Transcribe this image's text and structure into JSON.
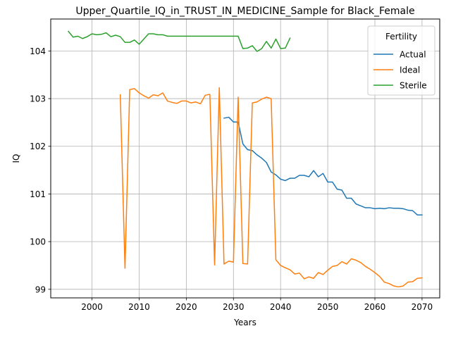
{
  "chart_data": {
    "type": "line",
    "title": "Upper_Quartile_IQ_in_TRUST_IN_MEDICINE_Sample for Black_Female",
    "xlabel": "Years",
    "ylabel": "IQ",
    "xlim": [
      1991.25,
      2073.75
    ],
    "ylim": [
      98.82,
      104.67
    ],
    "xticks": [
      2000,
      2010,
      2020,
      2030,
      2040,
      2050,
      2060,
      2070
    ],
    "yticks": [
      99,
      100,
      101,
      102,
      103,
      104
    ],
    "grid": true,
    "legend": {
      "title": "Fertility",
      "position": "top-right"
    },
    "series": [
      {
        "name": "Actual",
        "color": "#1f77b4",
        "x": [
          2028,
          2029,
          2030,
          2031,
          2032,
          2033,
          2034,
          2035,
          2036,
          2037,
          2038,
          2039,
          2040,
          2041,
          2042,
          2043,
          2044,
          2045,
          2046,
          2047,
          2048,
          2049,
          2050,
          2051,
          2052,
          2053,
          2054,
          2055,
          2056,
          2057,
          2058,
          2059,
          2060,
          2061,
          2062,
          2063,
          2064,
          2065,
          2066,
          2067,
          2068,
          2069,
          2070
        ],
        "y": [
          102.59,
          102.61,
          102.51,
          102.51,
          102.05,
          101.93,
          101.91,
          101.82,
          101.75,
          101.66,
          101.46,
          101.4,
          101.31,
          101.28,
          101.33,
          101.33,
          101.39,
          101.39,
          101.36,
          101.49,
          101.36,
          101.43,
          101.25,
          101.25,
          101.1,
          101.08,
          100.91,
          100.91,
          100.79,
          100.75,
          100.71,
          100.71,
          100.69,
          100.7,
          100.69,
          100.71,
          100.7,
          100.7,
          100.69,
          100.66,
          100.65,
          100.56,
          100.56
        ]
      },
      {
        "name": "Ideal",
        "color": "#ff7f0e",
        "x": [
          2006,
          2007,
          2008,
          2009,
          2010,
          2011,
          2012,
          2013,
          2014,
          2015,
          2016,
          2017,
          2018,
          2019,
          2020,
          2021,
          2022,
          2023,
          2024,
          2025,
          2026,
          2027,
          2028,
          2029,
          2030,
          2031,
          2032,
          2033,
          2034,
          2035,
          2036,
          2037,
          2038,
          2039,
          2040,
          2041,
          2042,
          2043,
          2044,
          2045,
          2046,
          2047,
          2048,
          2049,
          2050,
          2051,
          2052,
          2053,
          2054,
          2055,
          2056,
          2057,
          2058,
          2059,
          2060,
          2061,
          2062,
          2063,
          2064,
          2065,
          2066,
          2067,
          2068,
          2069,
          2070
        ],
        "y": [
          103.08,
          99.44,
          103.19,
          103.21,
          103.12,
          103.06,
          103.01,
          103.08,
          103.06,
          103.12,
          102.95,
          102.92,
          102.9,
          102.95,
          102.95,
          102.91,
          102.93,
          102.89,
          103.07,
          103.09,
          99.51,
          103.23,
          99.53,
          99.59,
          99.57,
          103.03,
          99.54,
          99.53,
          102.91,
          102.93,
          102.99,
          103.03,
          103.0,
          99.62,
          99.5,
          99.45,
          99.41,
          99.32,
          99.34,
          99.22,
          99.26,
          99.23,
          99.35,
          99.31,
          99.4,
          99.48,
          99.5,
          99.58,
          99.53,
          99.64,
          99.61,
          99.56,
          99.48,
          99.42,
          99.35,
          99.27,
          99.15,
          99.12,
          99.07,
          99.05,
          99.07,
          99.15,
          99.16,
          99.23,
          99.24
        ]
      },
      {
        "name": "Sterile",
        "color": "#2ca02c",
        "x": [
          1995,
          1996,
          1997,
          1998,
          1999,
          2000,
          2001,
          2002,
          2003,
          2004,
          2005,
          2006,
          2007,
          2008,
          2009,
          2010,
          2011,
          2012,
          2013,
          2014,
          2015,
          2016,
          2017,
          2018,
          2019,
          2020,
          2021,
          2022,
          2023,
          2024,
          2025,
          2026,
          2027,
          2028,
          2029,
          2030,
          2031,
          2032,
          2033,
          2034,
          2035,
          2036,
          2037,
          2038,
          2039,
          2040,
          2041,
          2042
        ],
        "y": [
          104.41,
          104.29,
          104.31,
          104.26,
          104.3,
          104.36,
          104.34,
          104.35,
          104.38,
          104.3,
          104.33,
          104.3,
          104.18,
          104.18,
          104.23,
          104.14,
          104.25,
          104.36,
          104.36,
          104.34,
          104.34,
          104.31,
          104.31,
          104.31,
          104.31,
          104.31,
          104.31,
          104.31,
          104.31,
          104.31,
          104.31,
          104.31,
          104.31,
          104.31,
          104.31,
          104.31,
          104.31,
          104.05,
          104.06,
          104.11,
          103.99,
          104.05,
          104.2,
          104.06,
          104.25,
          104.05,
          104.06,
          104.27
        ]
      }
    ]
  }
}
